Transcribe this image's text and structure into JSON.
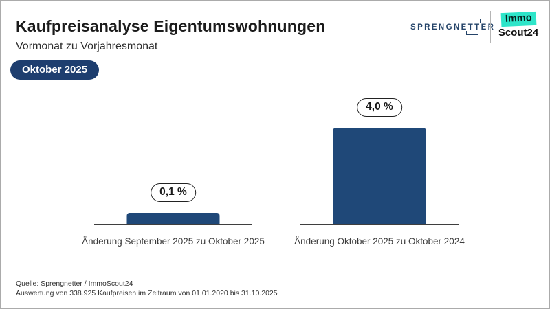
{
  "header": {
    "title": "Kaufpreisanalyse Eigentumswohnungen",
    "subtitle": "Vormonat zu Vorjahresmonat",
    "badge": "Oktober 2025"
  },
  "logos": {
    "sprengnetter_pre": "SPRENGNE",
    "sprengnetter_tt": "TT",
    "sprengnetter_post": "ER",
    "immo": "Immo",
    "scout24": "Scout24"
  },
  "chart_data": {
    "type": "bar",
    "title": "Kaufpreisanalyse Eigentumswohnungen",
    "subtitle": "Vormonat zu Vorjahresmonat",
    "period_badge": "Oktober 2025",
    "categories": [
      "Änderung September 2025 zu Oktober 2025",
      "Änderung Oktober 2025 zu Oktober 2024"
    ],
    "values": [
      0.1,
      4.0
    ],
    "value_labels": [
      "0,1 %",
      "4,0 %"
    ],
    "unit": "%",
    "bar_color": "#1f4878",
    "axis_color": "#3f3f3f",
    "grid": false,
    "legend_position": "none",
    "ylim": [
      0,
      4.5
    ]
  },
  "colors": {
    "bar_navy": "#1f4878",
    "badge_navy": "#1e3e6f",
    "sprengnetter_navy": "#254469",
    "immoscout_teal": "#2ee5c9"
  },
  "footer": {
    "line1": "Quelle: Sprengnetter / ImmoScout24",
    "line2": "Auswertung von 338.925 Kaufpreisen im Zeitraum von 01.01.2020 bis 31.10.2025"
  }
}
